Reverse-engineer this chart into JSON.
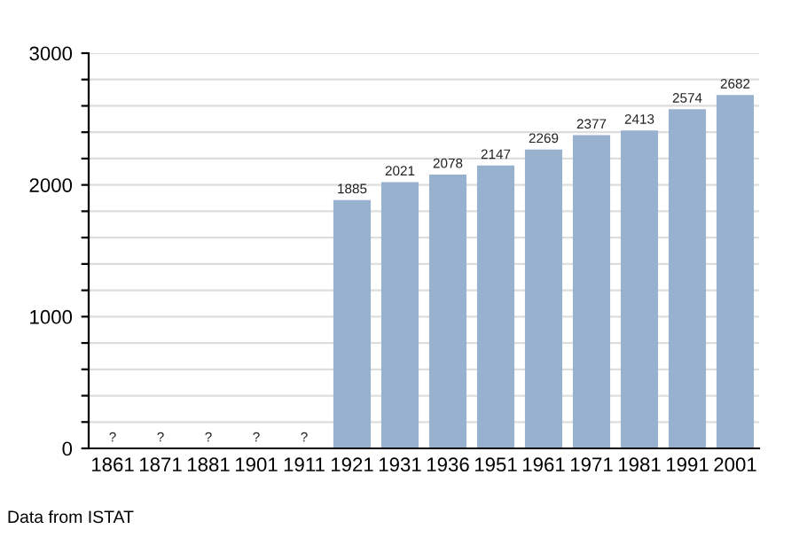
{
  "chart_data": {
    "type": "bar",
    "categories": [
      "1861",
      "1871",
      "1881",
      "1901",
      "1911",
      "1921",
      "1931",
      "1936",
      "1951",
      "1961",
      "1971",
      "1981",
      "1991",
      "2001"
    ],
    "values": [
      null,
      null,
      null,
      null,
      null,
      1885,
      2021,
      2078,
      2147,
      2269,
      2377,
      2413,
      2574,
      2682
    ],
    "value_labels": [
      "?",
      "?",
      "?",
      "?",
      "?",
      "1885",
      "2021",
      "2078",
      "2147",
      "2269",
      "2377",
      "2413",
      "2574",
      "2682"
    ],
    "color": "#97b1cf",
    "ylim": [
      0,
      3000
    ],
    "yticks": [
      0,
      {
        "value": 200,
        "label": null
      },
      {
        "value": 400,
        "label": null
      },
      {
        "value": 600,
        "label": null
      },
      {
        "value": 800,
        "label": null
      },
      1000,
      {
        "value": 1200,
        "label": null
      },
      {
        "value": 1400,
        "label": null
      },
      {
        "value": 1600,
        "label": null
      },
      {
        "value": 1800,
        "label": null
      },
      2000,
      {
        "value": 2200,
        "label": null
      },
      {
        "value": 2400,
        "label": null
      },
      {
        "value": 2600,
        "label": null
      },
      {
        "value": 2800,
        "label": null
      },
      3000
    ],
    "grid": true,
    "annotations": [
      "Data from ISTAT"
    ]
  }
}
